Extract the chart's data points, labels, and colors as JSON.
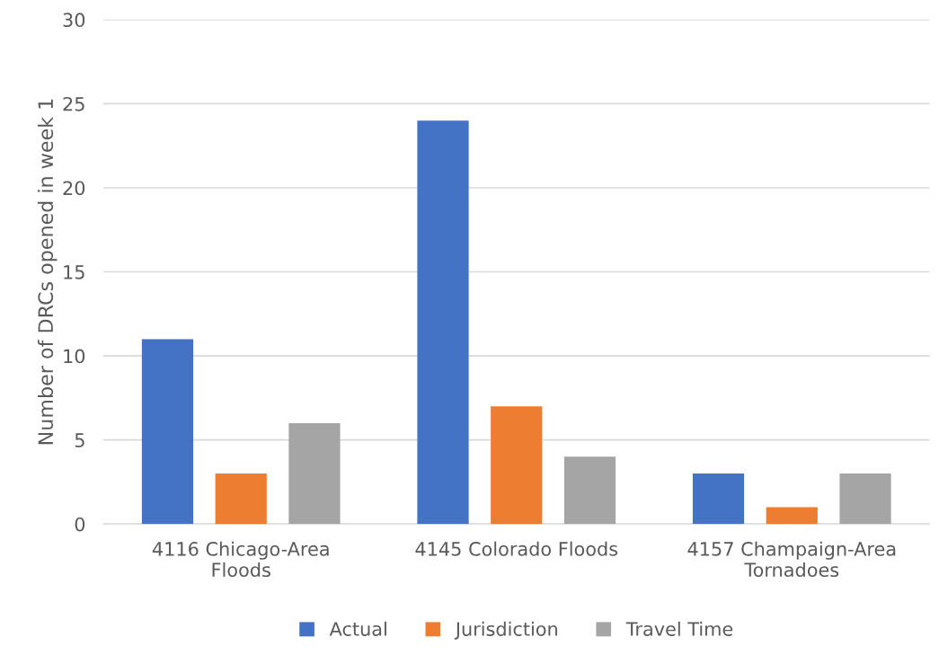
{
  "chart_data": {
    "type": "bar",
    "ylabel": "Number of DRCs opened in week 1",
    "categories": [
      "4116 Chicago-Area\nFloods",
      "4145 Colorado Floods",
      "4157 Champaign-Area\nTornadoes"
    ],
    "series": [
      {
        "name": "Actual",
        "color": "#4472c4",
        "values": [
          11,
          24,
          3
        ]
      },
      {
        "name": "Jurisdiction",
        "color": "#ed7d31",
        "values": [
          3,
          7,
          1
        ]
      },
      {
        "name": "Travel Time",
        "color": "#a5a5a5",
        "values": [
          6,
          4,
          3
        ]
      }
    ],
    "ylim": [
      0,
      30
    ],
    "yticks": [
      0,
      5,
      10,
      15,
      20,
      25,
      30
    ],
    "grid": "y",
    "legend": "bottom"
  }
}
